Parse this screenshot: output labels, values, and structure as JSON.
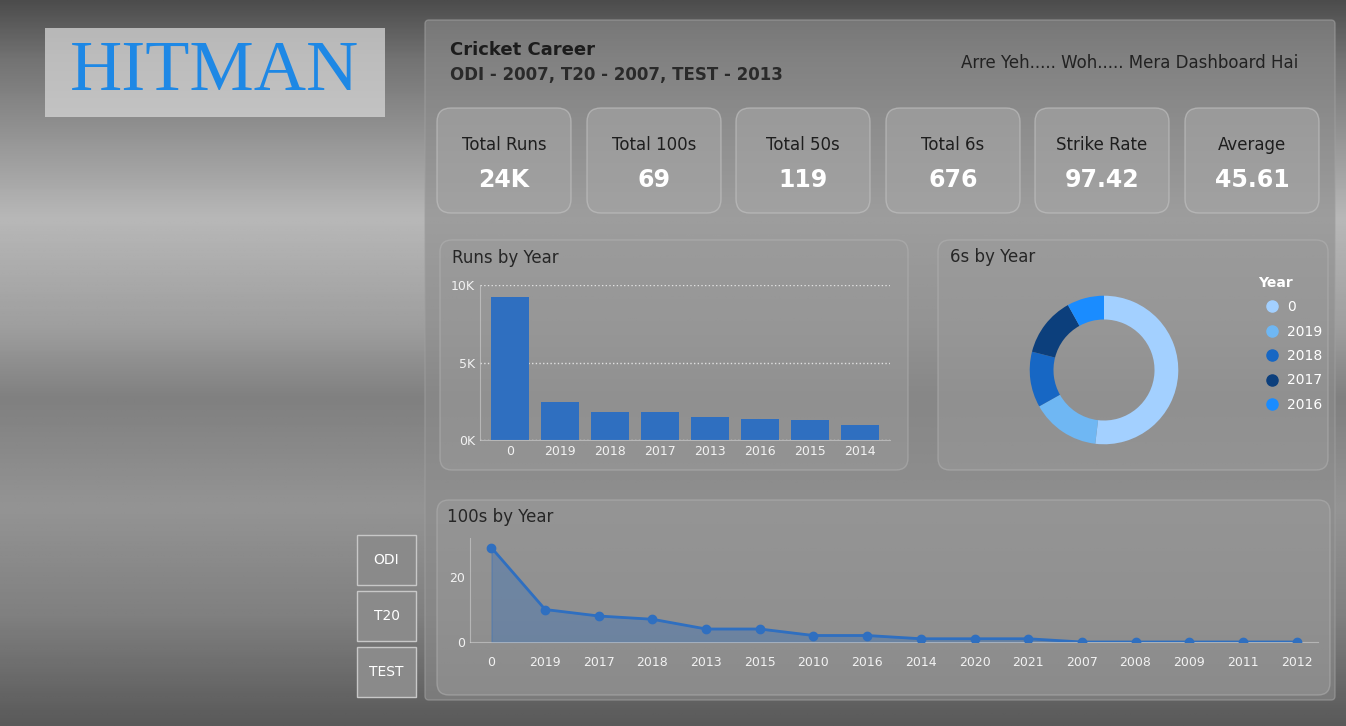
{
  "header": {
    "title": "HITMAN",
    "heading": "Cricket Career",
    "subheading": "ODI - 2007, T20 - 2007, TEST - 2013",
    "tagline": "Arre Yeh..... Woh..... Mera Dashboard Hai"
  },
  "kpis": [
    {
      "label": "Total Runs",
      "value": "24K"
    },
    {
      "label": "Total 100s",
      "value": "69"
    },
    {
      "label": "Total 50s",
      "value": "119"
    },
    {
      "label": "Total 6s",
      "value": "676"
    },
    {
      "label": "Strike Rate",
      "value": "97.42"
    },
    {
      "label": "Average",
      "value": "45.61"
    }
  ],
  "buttons": [
    "ODI",
    "T20",
    "TEST"
  ],
  "chart_data": [
    {
      "type": "bar",
      "title": "Runs by Year",
      "categories": [
        "0",
        "2019",
        "2018",
        "2017",
        "2013",
        "2016",
        "2015",
        "2014"
      ],
      "values": [
        9225,
        2450,
        1800,
        1800,
        1480,
        1350,
        1290,
        970
      ],
      "color": "#2f6fc0",
      "ylim": [
        0,
        10000
      ],
      "yticks": [
        {
          "value": 0,
          "label": "0K"
        },
        {
          "value": 5000,
          "label": "5K"
        },
        {
          "value": 10000,
          "label": "10K"
        }
      ],
      "grid": true
    },
    {
      "type": "donut",
      "title": "6s by Year",
      "categories": [
        "0",
        "2019",
        "2018",
        "2017",
        "2016"
      ],
      "values": [
        180,
        52,
        42,
        45,
        28
      ],
      "colors": [
        "#a3d0ff",
        "#6fb7f3",
        "#1767c4",
        "#0c3f7c",
        "#1a8cff"
      ],
      "legend": "upper left",
      "legend_title": "Year"
    },
    {
      "type": "area",
      "title": "100s by Year",
      "categories": [
        "0",
        "2019",
        "2017",
        "2018",
        "2013",
        "2015",
        "2010",
        "2016",
        "2014",
        "2020",
        "2021",
        "2007",
        "2008",
        "2009",
        "2011",
        "2012"
      ],
      "values": [
        29,
        10,
        8,
        7,
        4,
        4,
        2,
        2,
        1,
        1,
        1,
        0,
        0,
        0,
        0,
        0
      ],
      "color": "#2f6fc0",
      "marker": "o",
      "line_style": "solid",
      "ylim": [
        0,
        32
      ],
      "yticks": [
        0,
        20
      ],
      "grid": false
    }
  ]
}
